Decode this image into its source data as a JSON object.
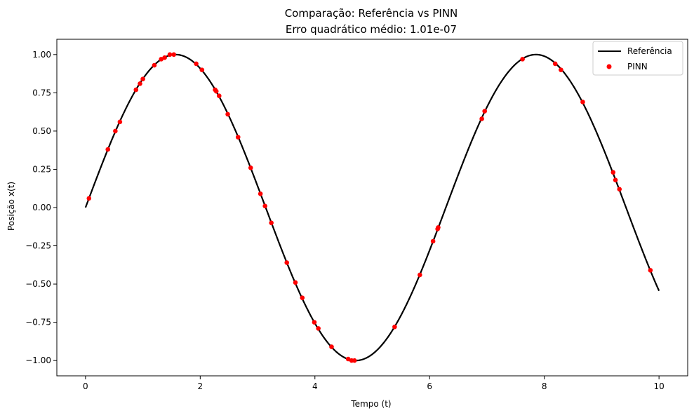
{
  "chart_data": {
    "type": "line",
    "title": "Comparação: Referência vs PINN",
    "subtitle": "Erro quadrático médio: 1.01e-07",
    "xlabel": "Tempo (t)",
    "ylabel": "Posição x(t)",
    "xlim": [
      -0.5,
      10.5
    ],
    "ylim": [
      -1.1,
      1.1
    ],
    "xticks": [
      0,
      2,
      4,
      6,
      8,
      10
    ],
    "xtick_labels": [
      "0",
      "2",
      "4",
      "6",
      "8",
      "10"
    ],
    "yticks": [
      -1.0,
      -0.75,
      -0.5,
      -0.25,
      0.0,
      0.25,
      0.5,
      0.75,
      1.0
    ],
    "ytick_labels": [
      "−1.00",
      "−0.75",
      "−0.50",
      "−0.25",
      "0.00",
      "0.25",
      "0.50",
      "0.75",
      "1.00"
    ],
    "grid": false,
    "legend_position": "top-right",
    "series": [
      {
        "name": "Referência",
        "kind": "line",
        "color": "#000000",
        "function": "sin(t)",
        "x_range": [
          0,
          10
        ]
      },
      {
        "name": "PINN",
        "kind": "scatter",
        "color": "#ff0000",
        "x": [
          0.06,
          0.39,
          0.52,
          0.6,
          0.88,
          0.95,
          1.0,
          1.2,
          1.32,
          1.38,
          1.47,
          1.54,
          1.93,
          2.03,
          2.26,
          2.28,
          2.33,
          2.48,
          2.66,
          2.88,
          3.05,
          3.13,
          3.24,
          3.51,
          3.66,
          3.78,
          3.99,
          4.06,
          4.29,
          4.58,
          4.64,
          4.69,
          5.39,
          5.83,
          6.06,
          6.14,
          6.15,
          6.91,
          6.96,
          7.62,
          8.19,
          8.29,
          8.67,
          9.2,
          9.24,
          9.31,
          9.85
        ],
        "y": [
          0.06,
          0.38,
          0.5,
          0.56,
          0.77,
          0.81,
          0.84,
          0.93,
          0.97,
          0.98,
          1.0,
          1.0,
          0.94,
          0.9,
          0.77,
          0.76,
          0.73,
          0.61,
          0.46,
          0.26,
          0.09,
          0.01,
          -0.1,
          -0.36,
          -0.49,
          -0.59,
          -0.75,
          -0.79,
          -0.91,
          -0.99,
          -1.0,
          -1.0,
          -0.78,
          -0.44,
          -0.22,
          -0.14,
          -0.13,
          0.58,
          0.63,
          0.97,
          0.94,
          0.9,
          0.69,
          0.23,
          0.18,
          0.12,
          -0.41
        ]
      }
    ]
  }
}
